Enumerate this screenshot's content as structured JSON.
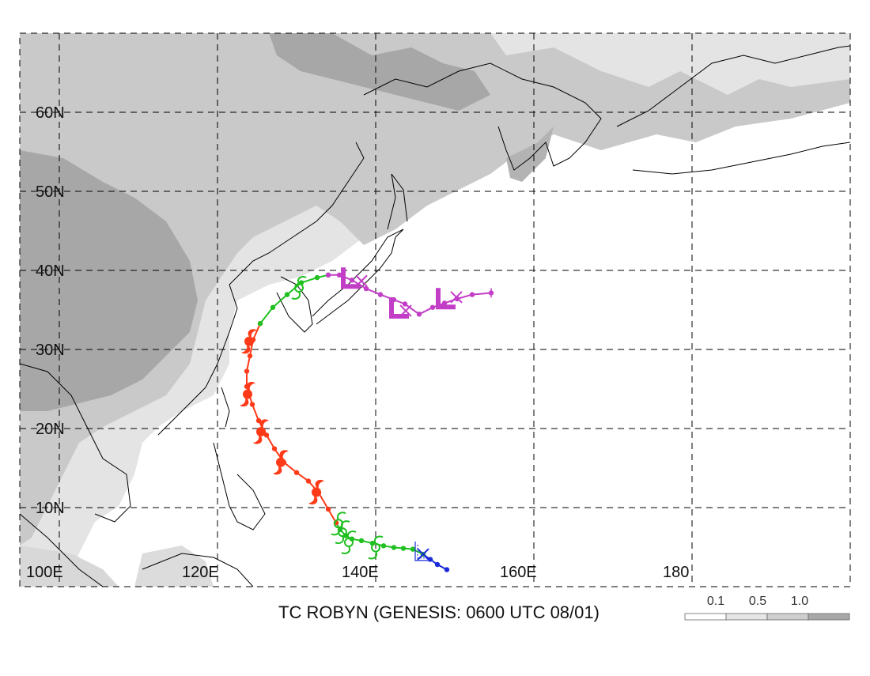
{
  "title": "TC ROBYN (GENESIS: 0600 UTC 08/01)",
  "lat_labels": [
    "60N",
    "50N",
    "40N",
    "30N",
    "20N",
    "10N"
  ],
  "lon_labels": [
    "100E",
    "120E",
    "140E",
    "160E",
    "180"
  ],
  "legend": {
    "labels": [
      "0.1",
      "0.5",
      "1.0"
    ],
    "colors": [
      "#ffffff",
      "#e6e6e6",
      "#cfcfcf",
      "#a8a8a8"
    ]
  },
  "map": {
    "lon_range": [
      100,
      205
    ],
    "lat_range": [
      5,
      70
    ],
    "grid_lon_step": 20,
    "grid_lat_step": 10
  },
  "track": {
    "segments": [
      {
        "stage": "depression",
        "color": "#1a2bd8",
        "points": [
          [
            154.0,
            7.0
          ],
          [
            152.8,
            7.6
          ],
          [
            151.9,
            8.2
          ],
          [
            151.0,
            8.8
          ]
        ]
      },
      {
        "stage": "tropical-storm",
        "color": "#1fc01f",
        "points": [
          [
            151.0,
            8.8
          ],
          [
            149.7,
            9.4
          ],
          [
            148.5,
            9.5
          ],
          [
            147.3,
            9.6
          ],
          [
            146.0,
            9.8
          ],
          [
            144.6,
            10.1
          ],
          [
            143.2,
            10.4
          ],
          [
            142.0,
            10.6
          ],
          [
            141.2,
            11.0
          ],
          [
            140.5,
            11.7
          ],
          [
            140.0,
            12.5
          ]
        ]
      },
      {
        "stage": "typhoon",
        "color": "#ff3a18",
        "points": [
          [
            140.0,
            12.5
          ],
          [
            139.0,
            14.1
          ],
          [
            137.8,
            16.0
          ],
          [
            136.5,
            17.4
          ],
          [
            135.0,
            18.4
          ],
          [
            133.4,
            19.6
          ],
          [
            132.2,
            21.2
          ],
          [
            131.2,
            22.8
          ],
          [
            130.2,
            24.5
          ],
          [
            129.4,
            26.4
          ],
          [
            128.7,
            28.5
          ],
          [
            128.7,
            30.3
          ],
          [
            129.1,
            32.1
          ],
          [
            129.5,
            34.0
          ],
          [
            130.4,
            35.9
          ]
        ]
      },
      {
        "stage": "tropical-storm",
        "color": "#1fc01f",
        "points": [
          [
            130.4,
            35.9
          ],
          [
            132.0,
            37.8
          ],
          [
            133.8,
            39.3
          ],
          [
            135.6,
            40.7
          ],
          [
            137.6,
            41.3
          ],
          [
            139.0,
            41.6
          ]
        ]
      },
      {
        "stage": "extratropical",
        "color": "#c23ec7",
        "points": [
          [
            139.0,
            41.6
          ],
          [
            140.4,
            41.6
          ],
          [
            142.0,
            41.0
          ],
          [
            143.8,
            40.0
          ],
          [
            145.6,
            39.3
          ],
          [
            147.3,
            38.7
          ],
          [
            148.7,
            38.2
          ],
          [
            150.5,
            37.0
          ],
          [
            152.2,
            37.8
          ],
          [
            153.7,
            38.3
          ],
          [
            155.3,
            38.8
          ],
          [
            157.2,
            39.3
          ],
          [
            159.6,
            39.5
          ]
        ]
      }
    ],
    "end_point": [
      159.6,
      39.5
    ],
    "forecast_x_marks": [
      [
        151.0,
        8.8
      ],
      [
        143.2,
        40.9
      ],
      [
        148.8,
        37.4
      ],
      [
        155.2,
        39.0
      ]
    ],
    "storm_symbols": [
      {
        "kind": "ts",
        "color": "#1fc01f",
        "at": [
          140.3,
          12.4
        ]
      },
      {
        "kind": "ts",
        "color": "#1fc01f",
        "at": [
          140.8,
          11.4
        ]
      },
      {
        "kind": "ts",
        "color": "#1fc01f",
        "at": [
          141.6,
          10.2
        ]
      },
      {
        "kind": "ts",
        "color": "#1fc01f",
        "at": [
          145.0,
          9.6
        ]
      },
      {
        "kind": "ty",
        "color": "#ff3a18",
        "at": [
          137.5,
          16.1
        ]
      },
      {
        "kind": "ty",
        "color": "#ff3a18",
        "at": [
          133.0,
          19.6
        ]
      },
      {
        "kind": "ty",
        "color": "#ff3a18",
        "at": [
          130.5,
          23.2
        ]
      },
      {
        "kind": "ty",
        "color": "#ff3a18",
        "at": [
          128.8,
          27.6
        ]
      },
      {
        "kind": "ty",
        "color": "#ff3a18",
        "at": [
          129.0,
          33.8
        ]
      },
      {
        "kind": "ts",
        "color": "#1fc01f",
        "at": [
          135.3,
          40.1
        ]
      },
      {
        "kind": "low",
        "color": "#c23ec7",
        "at": [
          141.9,
          41.0
        ]
      },
      {
        "kind": "low",
        "color": "#c23ec7",
        "at": [
          148.0,
          37.5
        ]
      },
      {
        "kind": "low",
        "color": "#c23ec7",
        "at": [
          153.9,
          38.6
        ]
      },
      {
        "kind": "lowbox",
        "color": "#1a2bd8",
        "at": [
          150.6,
          9.0
        ]
      }
    ]
  }
}
